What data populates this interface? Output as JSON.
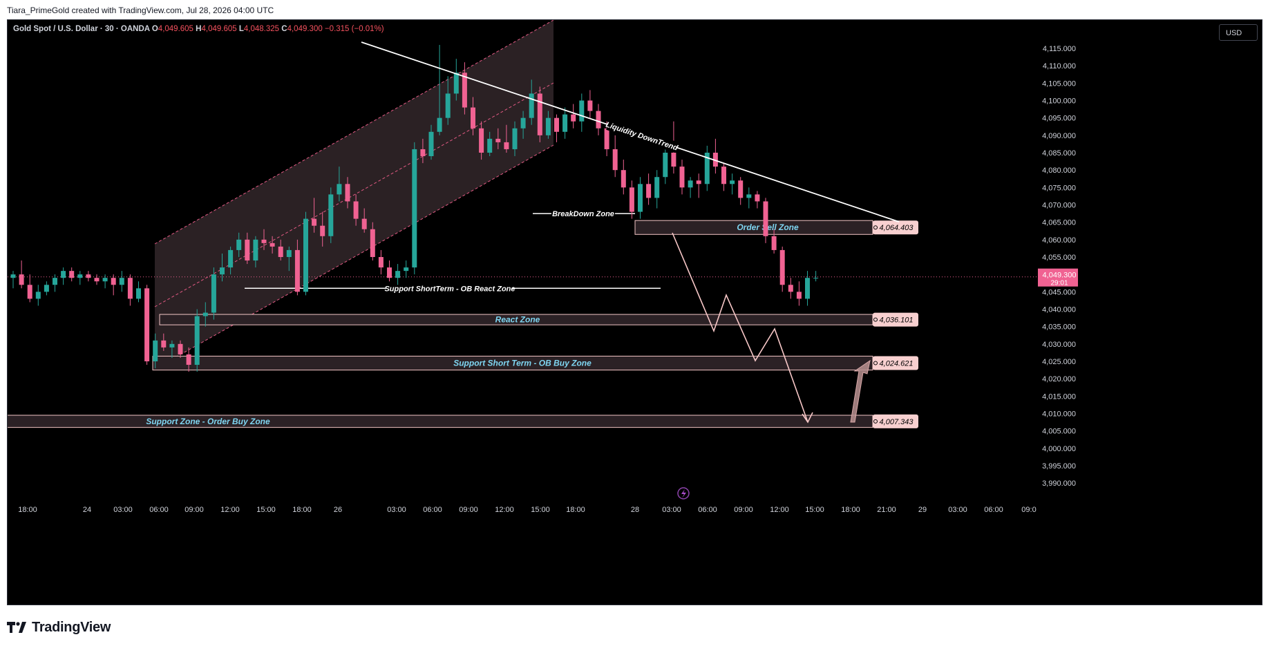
{
  "header": {
    "credit": "Tiara_PrimeGold created with TradingView.com, Jul 28, 2026 04:00 UTC"
  },
  "symbol": {
    "name": "Gold Spot / U.S. Dollar · 30 · OANDA",
    "o_label": "O",
    "o": "4,049.605",
    "h_label": "H",
    "h": "4,049.605",
    "l_label": "L",
    "l": "4,048.325",
    "c_label": "C",
    "c": "4,049.300",
    "change": "−0.315 (−0.01%)"
  },
  "currency": "USD",
  "footer": {
    "logo_text": "TradingView",
    "logo_icon": "tradingview-logo-icon"
  },
  "colors": {
    "background": "#000000",
    "up": "#26a69a",
    "down": "#f06292",
    "zone_fill": "#2b2125",
    "zone_border": "#f4c6c6",
    "zone_text": "#7fd6f2",
    "price_badge": "#f8d0d0",
    "current_price": "#f06292"
  },
  "chart_data": {
    "type": "candlestick",
    "title": "Gold Spot / U.S. Dollar · 30 · OANDA",
    "ylim": [
      3987,
      4120
    ],
    "y_ticks": [
      "4,115.000",
      "4,110.000",
      "4,105.000",
      "4,100.000",
      "4,095.000",
      "4,090.000",
      "4,085.000",
      "4,080.000",
      "4,075.000",
      "4,070.000",
      "4,065.000",
      "4,060.000",
      "4,055.000",
      "4,050.000",
      "4,045.000",
      "4,040.000",
      "4,035.000",
      "4,030.000",
      "4,025.000",
      "4,020.000",
      "4,015.000",
      "4,010.000",
      "4,005.000",
      "4,000.000",
      "3,995.000",
      "3,990.000"
    ],
    "x_ticks": [
      "18:00",
      "24",
      "03:00",
      "06:00",
      "09:00",
      "12:00",
      "15:00",
      "18:00",
      "26",
      "03:00",
      "06:00",
      "09:00",
      "12:00",
      "15:00",
      "18:00",
      "28",
      "03:00",
      "06:00",
      "09:00",
      "12:00",
      "15:00",
      "18:00",
      "21:00",
      "29",
      "03:00",
      "06:00",
      "09:0"
    ],
    "current_price": {
      "price": "4,049.300",
      "countdown": "29:01"
    },
    "candles": [
      [
        4049,
        4051,
        4046,
        4050
      ],
      [
        4050,
        4054,
        4046,
        4047
      ],
      [
        4047,
        4050,
        4042,
        4043
      ],
      [
        4043,
        4047,
        4041,
        4045
      ],
      [
        4045,
        4048,
        4044,
        4047
      ],
      [
        4047,
        4050,
        4045,
        4049
      ],
      [
        4049,
        4052,
        4047,
        4051
      ],
      [
        4051,
        4052,
        4048,
        4049
      ],
      [
        4049,
        4051,
        4047,
        4050
      ],
      [
        4050,
        4051,
        4048,
        4049
      ],
      [
        4049,
        4050,
        4047,
        4048
      ],
      [
        4048,
        4050,
        4046,
        4049
      ],
      [
        4049,
        4050,
        4044,
        4047
      ],
      [
        4047,
        4051,
        4045,
        4049
      ],
      [
        4049,
        4050,
        4041,
        4043
      ],
      [
        4043,
        4048,
        4042,
        4046
      ],
      [
        4046,
        4047,
        4024,
        4025
      ],
      [
        4025,
        4033,
        4023,
        4031
      ],
      [
        4031,
        4033,
        4028,
        4029
      ],
      [
        4029,
        4031,
        4026,
        4030
      ],
      [
        4030,
        4031,
        4026,
        4027
      ],
      [
        4027,
        4029,
        4022,
        4024
      ],
      [
        4024,
        4040,
        4022,
        4038
      ],
      [
        4038,
        4042,
        4035,
        4039
      ],
      [
        4039,
        4052,
        4037,
        4050
      ],
      [
        4050,
        4056,
        4048,
        4052
      ],
      [
        4052,
        4058,
        4050,
        4057
      ],
      [
        4057,
        4062,
        4055,
        4060
      ],
      [
        4060,
        4062,
        4053,
        4054
      ],
      [
        4054,
        4061,
        4052,
        4060
      ],
      [
        4060,
        4063,
        4057,
        4059
      ],
      [
        4059,
        4061,
        4056,
        4058
      ],
      [
        4058,
        4060,
        4054,
        4055
      ],
      [
        4055,
        4058,
        4051,
        4057
      ],
      [
        4057,
        4060,
        4044,
        4045
      ],
      [
        4045,
        4068,
        4044,
        4066
      ],
      [
        4066,
        4072,
        4062,
        4064
      ],
      [
        4064,
        4068,
        4058,
        4061
      ],
      [
        4061,
        4075,
        4059,
        4073
      ],
      [
        4073,
        4081,
        4071,
        4076
      ],
      [
        4076,
        4078,
        4069,
        4071
      ],
      [
        4071,
        4073,
        4064,
        4066
      ],
      [
        4066,
        4069,
        4062,
        4063
      ],
      [
        4063,
        4065,
        4054,
        4055
      ],
      [
        4055,
        4057,
        4050,
        4052
      ],
      [
        4052,
        4054,
        4048,
        4049
      ],
      [
        4049,
        4053,
        4047,
        4051
      ],
      [
        4051,
        4054,
        4049,
        4052
      ],
      [
        4052,
        4088,
        4050,
        4086
      ],
      [
        4086,
        4089,
        4082,
        4084
      ],
      [
        4084,
        4093,
        4083,
        4091
      ],
      [
        4091,
        4116,
        4090,
        4095
      ],
      [
        4095,
        4107,
        4093,
        4102
      ],
      [
        4102,
        4112,
        4100,
        4108
      ],
      [
        4108,
        4111,
        4096,
        4098
      ],
      [
        4098,
        4101,
        4090,
        4092
      ],
      [
        4092,
        4094,
        4083,
        4085
      ],
      [
        4085,
        4091,
        4084,
        4089
      ],
      [
        4089,
        4092,
        4086,
        4088
      ],
      [
        4088,
        4093,
        4085,
        4086
      ],
      [
        4086,
        4094,
        4084,
        4092
      ],
      [
        4092,
        4097,
        4089,
        4095
      ],
      [
        4095,
        4106,
        4093,
        4102
      ],
      [
        4102,
        4104,
        4088,
        4090
      ],
      [
        4090,
        4097,
        4089,
        4095
      ],
      [
        4095,
        4096,
        4088,
        4091
      ],
      [
        4091,
        4098,
        4089,
        4096
      ],
      [
        4096,
        4099,
        4092,
        4094
      ],
      [
        4094,
        4102,
        4091,
        4100
      ],
      [
        4100,
        4103,
        4095,
        4097
      ],
      [
        4097,
        4099,
        4090,
        4092
      ],
      [
        4092,
        4094,
        4084,
        4086
      ],
      [
        4086,
        4090,
        4078,
        4080
      ],
      [
        4080,
        4083,
        4073,
        4075
      ],
      [
        4075,
        4077,
        4066,
        4068
      ],
      [
        4068,
        4078,
        4066,
        4076
      ],
      [
        4076,
        4079,
        4070,
        4072
      ],
      [
        4072,
        4080,
        4069,
        4078
      ],
      [
        4078,
        4087,
        4076,
        4085
      ],
      [
        4085,
        4094,
        4079,
        4081
      ],
      [
        4081,
        4083,
        4073,
        4075
      ],
      [
        4075,
        4078,
        4072,
        4077
      ],
      [
        4077,
        4079,
        4072,
        4076
      ],
      [
        4076,
        4087,
        4074,
        4085
      ],
      [
        4085,
        4089,
        4079,
        4081
      ],
      [
        4081,
        4082,
        4074,
        4076
      ],
      [
        4076,
        4079,
        4073,
        4077
      ],
      [
        4077,
        4078,
        4070,
        4072
      ],
      [
        4072,
        4075,
        4069,
        4073
      ],
      [
        4073,
        4074,
        4069,
        4071
      ],
      [
        4071,
        4072,
        4059,
        4061
      ],
      [
        4061,
        4063,
        4056,
        4057
      ],
      [
        4057,
        4058,
        4045,
        4047
      ],
      [
        4047,
        4049,
        4043,
        4045
      ],
      [
        4045,
        4048,
        4041,
        4043
      ],
      [
        4043,
        4051,
        4041,
        4049
      ],
      [
        4049,
        4051,
        4048,
        4049
      ]
    ],
    "zones": [
      {
        "label": "Order Sell Zone",
        "top": 4065.5,
        "bottom": 4061.5,
        "price": "4,064.403"
      },
      {
        "label": "React Zone",
        "top": 4038.5,
        "bottom": 4035.5,
        "price": "4,036.101"
      },
      {
        "label": "Support Short Term - OB Buy Zone",
        "top": 4026.5,
        "bottom": 4022.5,
        "price": "4,024.621"
      },
      {
        "label": "Support Zone - Order Buy Zone",
        "top": 4009.5,
        "bottom": 4006,
        "price": "4,007.343"
      }
    ],
    "annotations": {
      "trendline": "Liquidity DownTrend",
      "breakdown": "BreakDown Zone",
      "support_line": "Support ShortTerm - OB React Zone"
    }
  }
}
